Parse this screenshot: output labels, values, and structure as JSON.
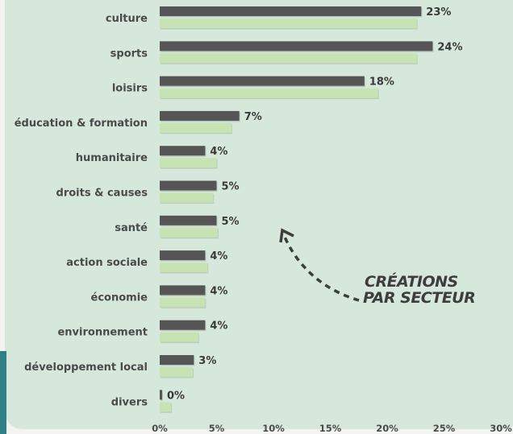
{
  "chart_data": {
    "type": "bar",
    "orientation": "horizontal",
    "categories": [
      "culture",
      "sports",
      "loisirs",
      "éducation & formation",
      "humanitaire",
      "droits & causes",
      "santé",
      "action sociale",
      "économie",
      "environnement",
      "développement local",
      "divers"
    ],
    "series": [
      {
        "values": [
          23,
          24,
          18,
          7,
          4,
          5,
          5,
          4,
          4,
          4,
          3,
          0
        ],
        "color": "#555555"
      },
      {
        "values": [
          22.6,
          22.6,
          19.2,
          6.3,
          5,
          4.7,
          5.1,
          4.2,
          4,
          3.4,
          2.9,
          1
        ],
        "color": "#c8e3b3"
      }
    ],
    "value_labels": [
      "23%",
      "24%",
      "18%",
      "7%",
      "4%",
      "5%",
      "5%",
      "4%",
      "4%",
      "4%",
      "3%",
      "0%"
    ],
    "xlim": [
      0,
      30
    ],
    "xticks": [
      "0%",
      "5%",
      "10%",
      "15%",
      "20%",
      "25%",
      "30%"
    ],
    "grid": false,
    "annotation": [
      "CRÉATIONS",
      "PAR SECTEUR"
    ]
  },
  "colors": {
    "background": "#d6e8dc",
    "accent": "#2f7f86",
    "dark_bar": "#555555",
    "light_bar": "#c8e3b3"
  }
}
